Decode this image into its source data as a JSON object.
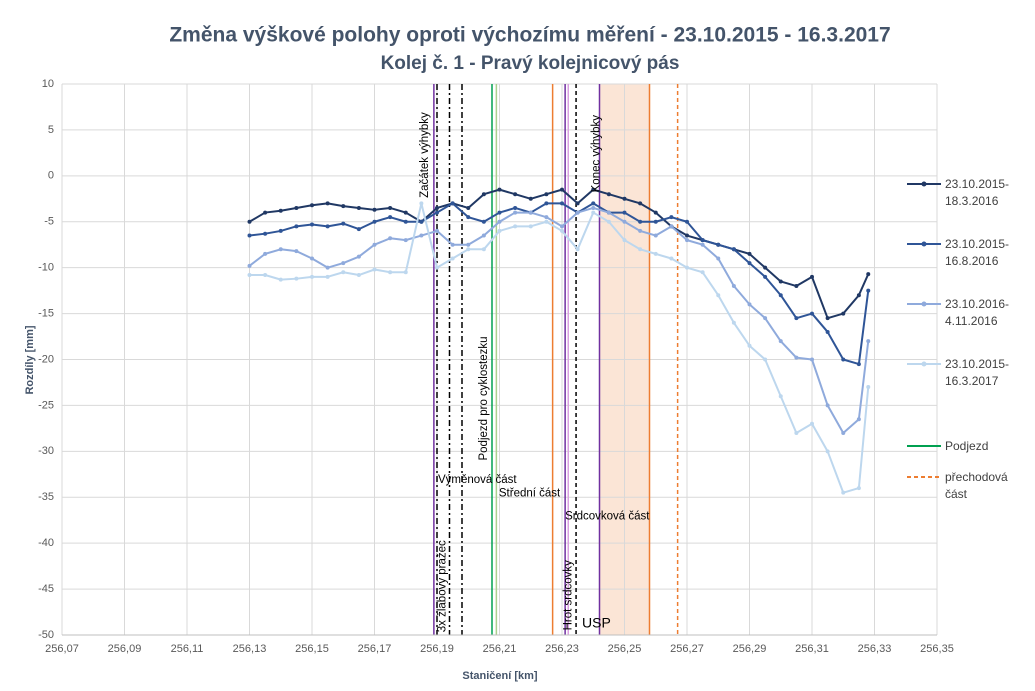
{
  "chart_data": {
    "type": "line",
    "title": "Změna výškové polohy oproti výchozímu měření - 23.10.2015 - 16.3.2017",
    "subtitle": "Kolej č. 1 - Pravý kolejnicový pás",
    "x_label": "Staničení [km]",
    "y_label": "Rozdíly [mm]",
    "x": [
      256.13,
      256.135,
      256.14,
      256.145,
      256.15,
      256.155,
      256.16,
      256.165,
      256.17,
      256.175,
      256.18,
      256.185,
      256.19,
      256.195,
      256.2,
      256.205,
      256.21,
      256.215,
      256.22,
      256.225,
      256.23,
      256.235,
      256.24,
      256.245,
      256.25,
      256.255,
      256.26,
      256.265,
      256.27,
      256.275,
      256.28,
      256.285,
      256.29,
      256.295,
      256.3,
      256.305,
      256.31,
      256.315,
      256.32,
      256.325,
      256.328
    ],
    "series": [
      {
        "name": "23.10.2015-18.3.2016",
        "color": "#203864",
        "values": [
          -5,
          -4,
          -3.8,
          -3.5,
          -3.2,
          -3,
          -3.3,
          -3.5,
          -3.7,
          -3.5,
          -4,
          -5,
          -3.5,
          -3,
          -3.5,
          -2,
          -1.5,
          -2,
          -2.5,
          -2,
          -1.5,
          -3,
          -1.5,
          -2,
          -2.5,
          -3,
          -4,
          -5.5,
          -6.5,
          -7,
          -7.5,
          -8,
          -8.5,
          -10,
          -11.5,
          -12,
          -11,
          -15.5,
          -15,
          -13,
          -10.7
        ]
      },
      {
        "name": "23.10.2015-16.8.2016",
        "color": "#2f5597",
        "values": [
          -6.5,
          -6.3,
          -6,
          -5.5,
          -5.3,
          -5.5,
          -5.2,
          -5.8,
          -5,
          -4.5,
          -5,
          -5,
          -4,
          -3,
          -4.5,
          -5,
          -4,
          -3.5,
          -4,
          -3,
          -3,
          -4,
          -3,
          -4,
          -4,
          -5,
          -5,
          -4.5,
          -5,
          -7,
          -7.5,
          -8,
          -9.5,
          -11,
          -13,
          -15.5,
          -15,
          -17,
          -20,
          -20.5,
          -12.5
        ]
      },
      {
        "name": "23.10.2016-4.11.2016",
        "color": "#8faadc",
        "values": [
          -9.8,
          -8.5,
          -8,
          -8.2,
          -9,
          -10,
          -9.5,
          -8.8,
          -7.5,
          -6.8,
          -7,
          -6.5,
          -6,
          -7.5,
          -7.5,
          -6.5,
          -5,
          -4,
          -4,
          -4.5,
          -5.5,
          -4,
          -3.5,
          -4,
          -5,
          -6,
          -6.5,
          -5.5,
          -7,
          -7.5,
          -9,
          -12,
          -14,
          -15.5,
          -18,
          -19.8,
          -20,
          -25,
          -28,
          -26.5,
          -18
        ]
      },
      {
        "name": "23.10.2015-16.3.2017",
        "color": "#bdd7ee",
        "values": [
          -10.8,
          -10.8,
          -11.3,
          -11.2,
          -11,
          -11,
          -10.5,
          -10.8,
          -10.2,
          -10.5,
          -10.5,
          -3,
          -10,
          -9,
          -8,
          -8,
          -6,
          -5.5,
          -5.5,
          -5,
          -6,
          -8,
          -4,
          -5,
          -7,
          -8,
          -8.5,
          -9,
          -10,
          -10.5,
          -13,
          -16,
          -18.5,
          -20,
          -24,
          -28,
          -27,
          -30,
          -34.5,
          -34,
          -23
        ]
      }
    ],
    "markers": [
      {
        "x": 256.189,
        "color": "#7030a0",
        "dash": "solid"
      },
      {
        "x": 256.19,
        "color": "#000000",
        "dash": "dashdot"
      },
      {
        "x": 256.194,
        "color": "#000000",
        "dash": "dashdot"
      },
      {
        "x": 256.198,
        "color": "#000000",
        "dash": "dashdot"
      },
      {
        "x": 256.2076,
        "color": "#00a050",
        "dash": "solid",
        "name": "Podjezd"
      },
      {
        "x": 256.209,
        "color": "#a9d18e",
        "dash": "solid"
      },
      {
        "x": 256.227,
        "color": "#ed7d31",
        "dash": "solid"
      },
      {
        "x": 256.231,
        "color": "#7030a0",
        "dash": "solid"
      },
      {
        "x": 256.232,
        "color": "#d9a0e0",
        "dash": "solid"
      },
      {
        "x": 256.2345,
        "color": "#000000",
        "dash": "dashed"
      },
      {
        "x": 256.242,
        "color": "#7030a0",
        "dash": "solid"
      },
      {
        "x": 256.258,
        "color": "#ed7d31",
        "dash": "solid"
      },
      {
        "x": 256.267,
        "color": "#ed7d31",
        "dash": "dashed",
        "name": "přechodová část"
      }
    ],
    "bands": [
      {
        "x0": 256.242,
        "x1": 256.258,
        "color": "#fbe5d6"
      }
    ],
    "annotations": [
      {
        "text": "Začátek výhybky",
        "x": 256.1862,
        "y": -2.4,
        "orientation": "vertical"
      },
      {
        "text": "3x žlabový pražec",
        "x": 256.1918,
        "y": -49.7,
        "orientation": "vertical"
      },
      {
        "text": "Podjezd pro cyklostezku",
        "x": 256.205,
        "y": -31,
        "orientation": "vertical"
      },
      {
        "text": "Hrot srdcovky",
        "x": 256.232,
        "y": -49.5,
        "orientation": "vertical"
      },
      {
        "text": "Konec výhybky",
        "x": 256.241,
        "y": -1.8,
        "orientation": "vertical"
      },
      {
        "text": "Výměnová část",
        "x": 256.1903,
        "y": -33.1,
        "orientation": "horizontal"
      },
      {
        "text": "Střední část",
        "x": 256.2098,
        "y": -34.6,
        "orientation": "horizontal"
      },
      {
        "text": "Srdcovková část",
        "x": 256.231,
        "y": -37.1,
        "orientation": "horizontal"
      },
      {
        "text": "USP",
        "x": 256.2364,
        "y": -48.8,
        "orientation": "horizontal"
      }
    ],
    "xlim": [
      256.07,
      256.35
    ],
    "ylim": [
      -50,
      10
    ],
    "xticks": [
      {
        "value": 256.07,
        "label": "256,07"
      },
      {
        "value": 256.09,
        "label": "256,09"
      },
      {
        "value": 256.11,
        "label": "256,11"
      },
      {
        "value": 256.13,
        "label": "256,13"
      },
      {
        "value": 256.15,
        "label": "256,15"
      },
      {
        "value": 256.17,
        "label": "256,17"
      },
      {
        "value": 256.19,
        "label": "256,19"
      },
      {
        "value": 256.21,
        "label": "256,21"
      },
      {
        "value": 256.23,
        "label": "256,23"
      },
      {
        "value": 256.25,
        "label": "256,25"
      },
      {
        "value": 256.27,
        "label": "256,27"
      },
      {
        "value": 256.29,
        "label": "256,29"
      },
      {
        "value": 256.31,
        "label": "256,31"
      },
      {
        "value": 256.33,
        "label": "256,33"
      },
      {
        "value": 256.35,
        "label": "256,35"
      }
    ],
    "yticks": [
      10,
      5,
      0,
      -5,
      -10,
      -15,
      -20,
      -25,
      -30,
      -35,
      -40,
      -45,
      -50
    ],
    "grid": true
  }
}
